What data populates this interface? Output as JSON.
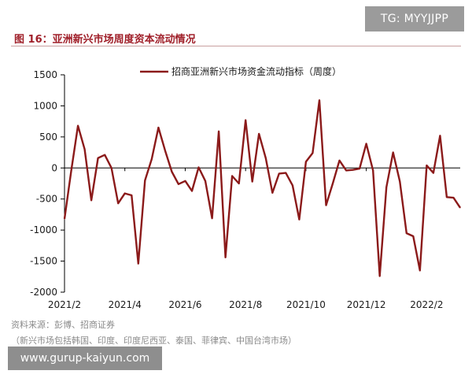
{
  "watermark_top": "TG: MYYJJPP",
  "watermark_bottom": "www.gurup-kaiyun.com",
  "figure_title": "图 16：亚洲新兴市场周度资本流动情况",
  "source": "资料来源：彭博、招商证券",
  "note": "（新兴市场包括韩国、印度、印度尼西亚、泰国、菲律宾、中国台湾市场）",
  "colors": {
    "line": "#8b1a1a",
    "title": "#a0202a",
    "axis": "#000000"
  },
  "chart_data": {
    "type": "line",
    "title": "",
    "xlabel": "",
    "ylabel": "",
    "ylim": [
      -2000,
      1500
    ],
    "yticks": [
      1500,
      1000,
      500,
      0,
      -500,
      -1000,
      -1500,
      -2000
    ],
    "xtick_labels": [
      "2021/2",
      "2021/4",
      "2021/6",
      "2021/8",
      "2021/10",
      "2021/12",
      "2022/2"
    ],
    "xtick_week_index": [
      0,
      9,
      18,
      27,
      36,
      45,
      54
    ],
    "grid": false,
    "legend_position": "top",
    "series": [
      {
        "name": "招商亚洲新兴市场资金流动指标（周度）",
        "values": [
          -820,
          -50,
          680,
          300,
          -520,
          160,
          210,
          0,
          -570,
          -410,
          -440,
          -1540,
          -200,
          140,
          650,
          280,
          -60,
          -260,
          -210,
          -370,
          10,
          -210,
          -810,
          590,
          -1440,
          -130,
          -250,
          770,
          -220,
          550,
          160,
          -400,
          -90,
          -80,
          -280,
          -830,
          100,
          240,
          1090,
          -600,
          -250,
          120,
          -40,
          -30,
          -10,
          390,
          -40,
          -1740,
          -310,
          250,
          -220,
          -1050,
          -1100,
          -1650,
          40,
          -80,
          520,
          -470,
          -480,
          -640
        ]
      }
    ]
  }
}
